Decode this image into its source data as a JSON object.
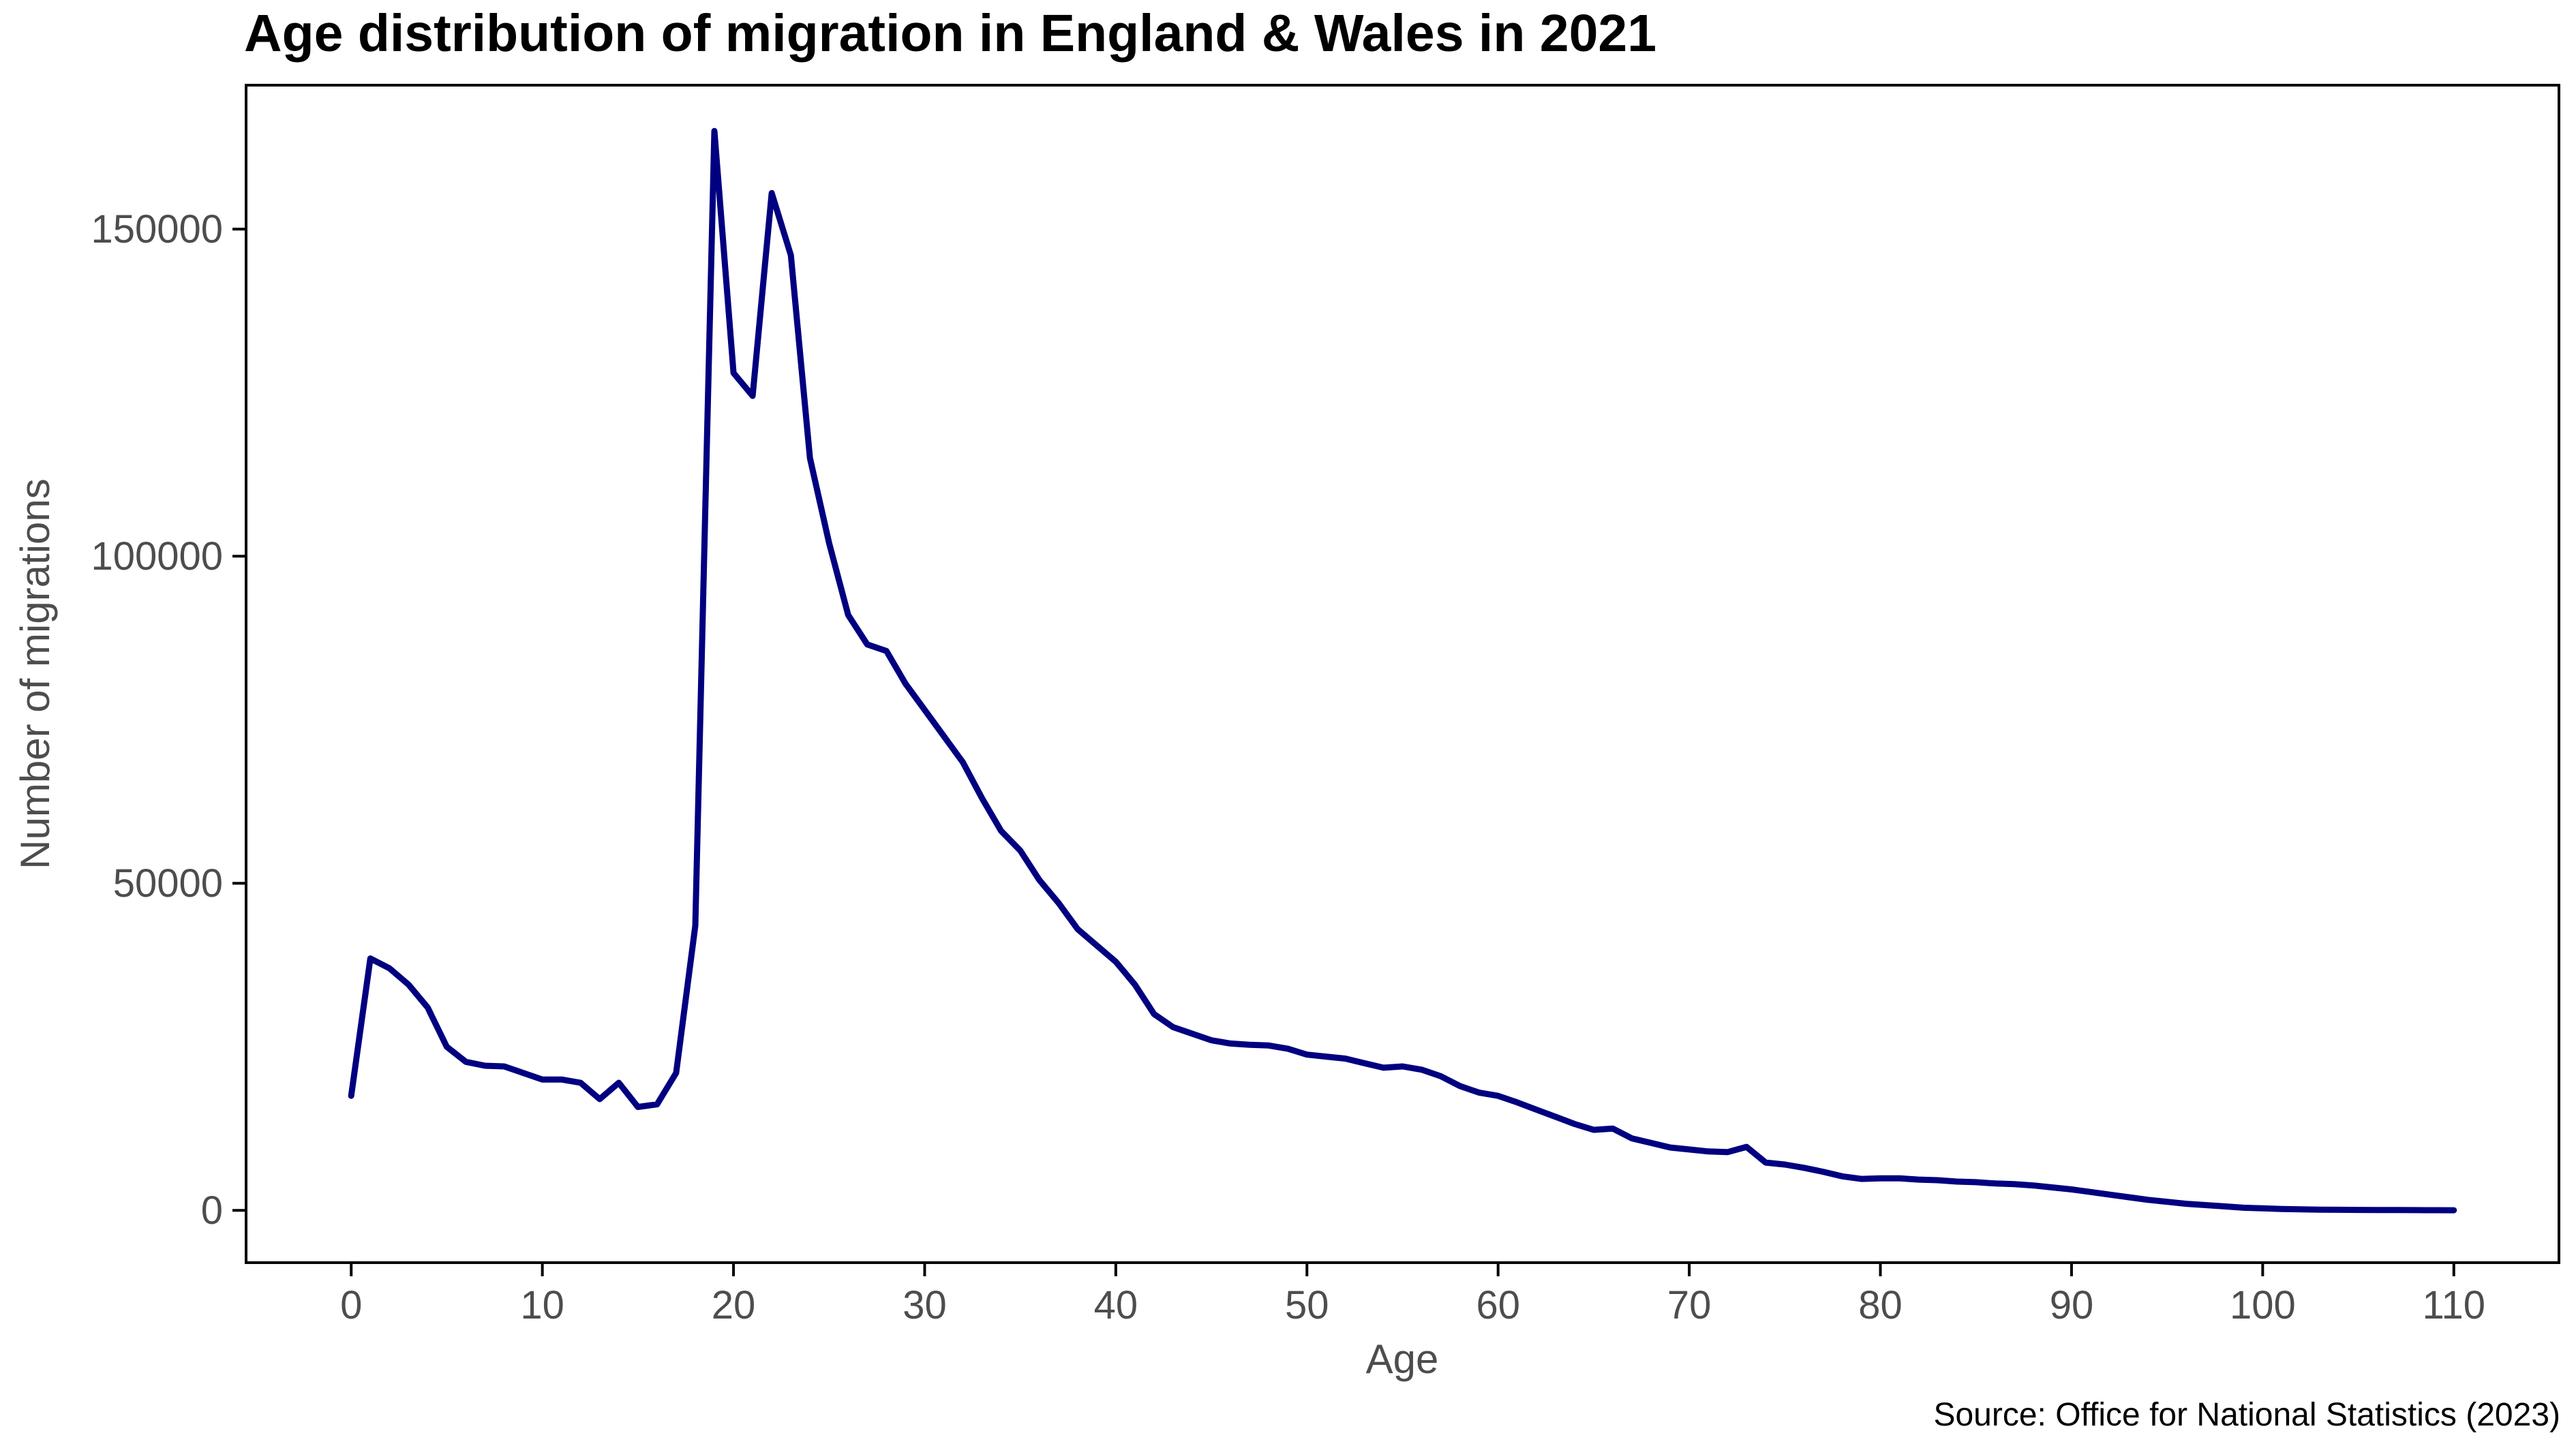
{
  "chart_data": {
    "type": "line",
    "title": "Age distribution of migration in England & Wales in 2021",
    "xlabel": "Age",
    "ylabel": "Number of migrations",
    "source": "Source: Office for National Statistics (2023)",
    "xlim": [
      -5.5,
      115.5
    ],
    "ylim": [
      -8000,
      172000
    ],
    "x_ticks": [
      0,
      10,
      20,
      30,
      40,
      50,
      60,
      70,
      80,
      90,
      100,
      110
    ],
    "y_ticks": [
      0,
      50000,
      100000,
      150000
    ],
    "grid": false,
    "line_color": "#000080",
    "series": [
      {
        "x": [
          0,
          1,
          2,
          3,
          4,
          5,
          6,
          7,
          8,
          9,
          10,
          11,
          12,
          13,
          14,
          15,
          16,
          17,
          18,
          19,
          20,
          21,
          22,
          23,
          24,
          25,
          26,
          27,
          28,
          29,
          30,
          31,
          32,
          33,
          34,
          35,
          36,
          37,
          38,
          39,
          40,
          41,
          42,
          43,
          44,
          45,
          46,
          47,
          48,
          49,
          50,
          51,
          52,
          53,
          54,
          55,
          56,
          57,
          58,
          59,
          60,
          61,
          62,
          63,
          64,
          65,
          66,
          67,
          68,
          69,
          70,
          71,
          72,
          73,
          74,
          75,
          76,
          77,
          78,
          79,
          80,
          81,
          82,
          83,
          84,
          85,
          86,
          87,
          88,
          89,
          90,
          91,
          92,
          93,
          94,
          95,
          96,
          97,
          98,
          99,
          100,
          101,
          102,
          103,
          104,
          105,
          106,
          107,
          108,
          109,
          110
        ],
        "values": [
          17500,
          38500,
          37000,
          34500,
          31000,
          25000,
          22700,
          22100,
          22000,
          21000,
          20000,
          20000,
          19500,
          17000,
          19500,
          15800,
          16200,
          21000,
          43500,
          165000,
          128000,
          124500,
          155500,
          146000,
          115000,
          102000,
          91000,
          86500,
          85500,
          80500,
          76500,
          72500,
          68500,
          63000,
          58000,
          55000,
          50500,
          47000,
          43000,
          40500,
          38000,
          34500,
          30000,
          28000,
          27000,
          26000,
          25500,
          25300,
          25200,
          24700,
          23800,
          23500,
          23200,
          22500,
          21800,
          22000,
          21500,
          20500,
          19000,
          18000,
          17500,
          16500,
          15400,
          14300,
          13200,
          12300,
          12500,
          11000,
          10300,
          9600,
          9300,
          9000,
          8900,
          9700,
          7300,
          7000,
          6500,
          5900,
          5200,
          4800,
          4900,
          4900,
          4700,
          4600,
          4400,
          4300,
          4100,
          4000,
          3800,
          3500,
          3200,
          2800,
          2400,
          2000,
          1600,
          1300,
          1000,
          800,
          600,
          400,
          300,
          200,
          150,
          100,
          80,
          60,
          50,
          40,
          30,
          20,
          10
        ]
      }
    ]
  }
}
